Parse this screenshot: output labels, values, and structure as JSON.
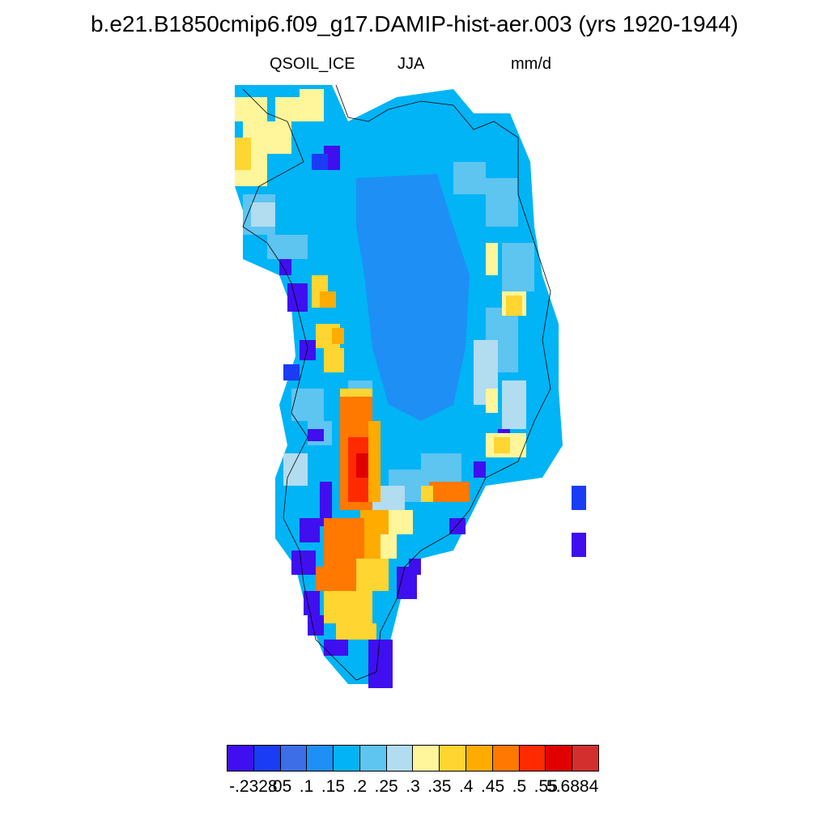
{
  "title": "b.e21.B1850cmip6.f09_g17.DAMIP-hist-aer.003 (yrs 1920-1944)",
  "subtitle_left": "QSOIL_ICE",
  "subtitle_center": "JJA",
  "subtitle_right": "mm/d",
  "colorbar": {
    "colors": [
      "#3f0ff0",
      "#1a3cf5",
      "#3d6ee8",
      "#1e8ff5",
      "#00b4f5",
      "#5ec4f0",
      "#b2dcf0",
      "#fff59a",
      "#ffd531",
      "#ffab00",
      "#ff7800",
      "#ff2a00",
      "#e00000",
      "#d32f2f"
    ],
    "labels": [
      "-.2328",
      ".05",
      ".1",
      ".15",
      ".2",
      ".25",
      ".3",
      ".35",
      ".4",
      ".45",
      ".5",
      ".55",
      "5.6884"
    ]
  },
  "map": {
    "description_colors": {
      "interior": "#1e8ff5",
      "coast_east": "#5ec4f0",
      "southwest_high": "#ff7800"
    }
  }
}
